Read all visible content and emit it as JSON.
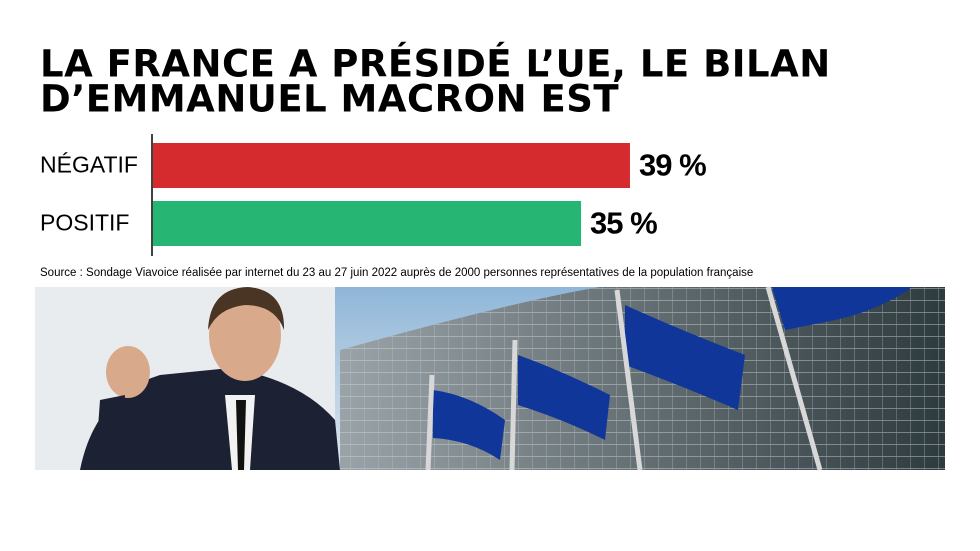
{
  "chart_data": {
    "type": "bar",
    "orientation": "horizontal",
    "title": [
      "LA FRANCE A PRÉSIDÉ L’UE, LE BILAN",
      "D’EMMANUEL MACRON EST"
    ],
    "categories": [
      "NÉGATIF",
      "POSITIF"
    ],
    "values": [
      39,
      35
    ],
    "value_labels": [
      "39 %",
      "35 %"
    ],
    "colors": [
      "#d52b2e",
      "#27b574"
    ],
    "source": "Source : Sondage Viavoice réalisée par internet du 23 au 27 juin 2022 auprès de 2000 personnes représentatives de la population française"
  }
}
